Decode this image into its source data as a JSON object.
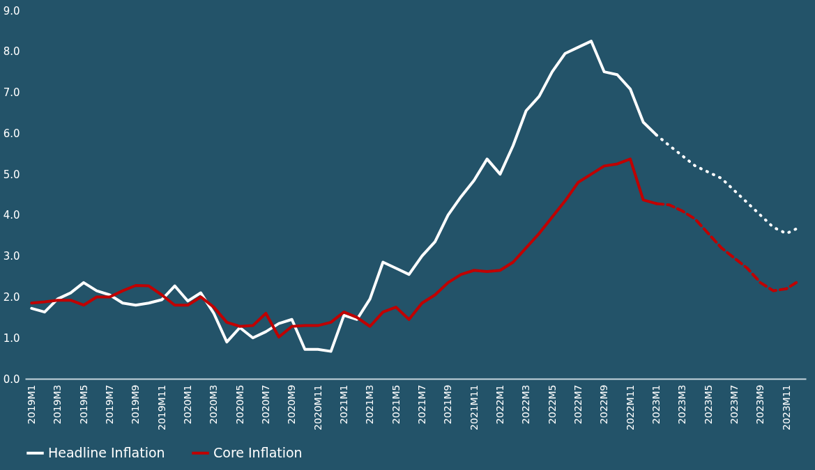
{
  "chart_data": {
    "type": "line",
    "categories": [
      "2019M1",
      null,
      "2019M3",
      null,
      "2019M5",
      null,
      "2019M7",
      null,
      "2019M9",
      null,
      "2019M11",
      null,
      "2020M1",
      null,
      "2020M3",
      null,
      "2020M5",
      null,
      "2020M7",
      null,
      "2020M9",
      null,
      "2020M11",
      null,
      "2021M1",
      null,
      "2021M3",
      null,
      "2021M5",
      null,
      "2021M7",
      null,
      "2021M9",
      null,
      "2021M11",
      null,
      "2022M1",
      null,
      "2022M3",
      null,
      "2022M5",
      null,
      "2022M7",
      null,
      "2022M9",
      null,
      "2022M11",
      null,
      "2023M1",
      null,
      "2023M3",
      null,
      "2023M5",
      null,
      "2023M7",
      null,
      "2023M9",
      null,
      "2023M11",
      null
    ],
    "series": [
      {
        "name": "Headline Inflation",
        "color": "#ffffff",
        "line_style": "solid",
        "values": [
          1.72,
          1.63,
          1.95,
          2.1,
          2.35,
          2.15,
          2.05,
          1.85,
          1.8,
          1.85,
          1.93,
          2.27,
          1.9,
          2.1,
          1.6,
          0.9,
          1.25,
          1.0,
          1.15,
          1.35,
          1.45,
          0.72,
          0.72,
          0.67,
          1.55,
          1.45,
          1.95,
          2.85,
          2.7,
          2.55,
          3.0,
          3.35,
          4.0,
          4.45,
          4.85,
          5.37,
          5.0,
          5.7,
          6.55,
          6.9,
          7.5,
          7.95,
          8.1,
          8.25,
          7.5,
          7.43,
          7.08,
          6.27,
          5.96,
          null,
          null,
          null,
          null,
          null,
          null,
          null,
          null,
          null,
          null,
          null
        ]
      },
      {
        "color": "#ffffff",
        "line_style": "dotted",
        "values": [
          null,
          null,
          null,
          null,
          null,
          null,
          null,
          null,
          null,
          null,
          null,
          null,
          null,
          null,
          null,
          null,
          null,
          null,
          null,
          null,
          null,
          null,
          null,
          null,
          null,
          null,
          null,
          null,
          null,
          null,
          null,
          null,
          null,
          null,
          null,
          null,
          null,
          null,
          null,
          null,
          null,
          null,
          null,
          null,
          null,
          null,
          null,
          null,
          5.96,
          5.7,
          5.45,
          5.2,
          5.05,
          4.9,
          4.6,
          4.3,
          4.0,
          3.7,
          3.55,
          3.7
        ]
      },
      {
        "name": "Core Inflation",
        "color": "#c00000",
        "line_style": "solid",
        "values": [
          1.85,
          1.88,
          1.92,
          1.92,
          1.8,
          2.0,
          2.0,
          2.15,
          2.28,
          2.27,
          2.05,
          1.8,
          1.8,
          2.0,
          1.75,
          1.38,
          1.28,
          1.3,
          1.6,
          1.02,
          1.28,
          1.3,
          1.3,
          1.38,
          1.63,
          1.5,
          1.28,
          1.63,
          1.75,
          1.45,
          1.85,
          2.05,
          2.35,
          2.55,
          2.65,
          2.62,
          2.65,
          2.85,
          3.2,
          3.55,
          3.95,
          4.35,
          4.8,
          5.0,
          5.2,
          5.25,
          5.37,
          4.37,
          4.28,
          null,
          null,
          null,
          null,
          null,
          null,
          null,
          null,
          null,
          null,
          null
        ]
      },
      {
        "color": "#c00000",
        "line_style": "dashed",
        "values": [
          null,
          null,
          null,
          null,
          null,
          null,
          null,
          null,
          null,
          null,
          null,
          null,
          null,
          null,
          null,
          null,
          null,
          null,
          null,
          null,
          null,
          null,
          null,
          null,
          null,
          null,
          null,
          null,
          null,
          null,
          null,
          null,
          null,
          null,
          null,
          null,
          null,
          null,
          null,
          null,
          null,
          null,
          null,
          null,
          null,
          null,
          null,
          null,
          4.28,
          4.25,
          4.1,
          3.9,
          3.55,
          3.2,
          2.95,
          2.7,
          2.35,
          2.15,
          2.2,
          2.4
        ]
      }
    ],
    "ylim": [
      0,
      9
    ],
    "yticks": [
      {
        "value": 0,
        "label": "0.0"
      },
      {
        "value": 1,
        "label": "1.0"
      },
      {
        "value": 2,
        "label": "2.0"
      },
      {
        "value": 3,
        "label": "3.0"
      },
      {
        "value": 4,
        "label": "4.0"
      },
      {
        "value": 5,
        "label": "5.0"
      },
      {
        "value": 6,
        "label": "6.0"
      },
      {
        "value": 7,
        "label": "7.0"
      },
      {
        "value": 8,
        "label": "8.0"
      },
      {
        "value": 9,
        "label": "9.0"
      }
    ],
    "grid": false,
    "legend": "bottom"
  }
}
